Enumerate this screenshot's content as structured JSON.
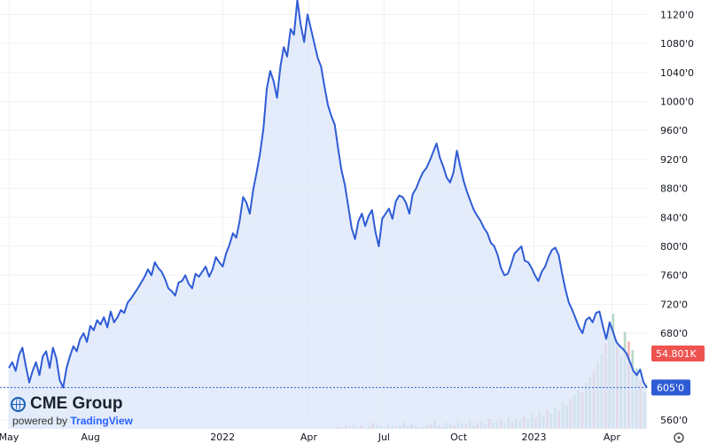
{
  "chart_data": {
    "type": "line",
    "title": "",
    "xlabel": "",
    "ylabel": "",
    "ylim": [
      548,
      1140
    ],
    "y_ticks": [
      "560'0",
      "605'0",
      "680'0",
      "720'0",
      "760'0",
      "800'0",
      "840'0",
      "880'0",
      "920'0",
      "960'0",
      "1000'0",
      "1040'0",
      "1080'0",
      "1120'0"
    ],
    "y_tick_values": [
      560,
      605,
      680,
      720,
      760,
      800,
      840,
      880,
      920,
      960,
      1000,
      1040,
      1080,
      1120
    ],
    "x_ticks": [
      "May",
      "Aug",
      "2022",
      "Apr",
      "Jul",
      "Oct",
      "2023",
      "Apr"
    ],
    "grid": true,
    "area_color": "#dbe6fa",
    "line_color": "#2f5cd6",
    "series": [
      {
        "values": [
          632,
          640,
          628,
          650,
          660,
          635,
          612,
          628,
          640,
          622,
          648,
          655,
          632,
          660,
          645,
          615,
          605,
          632,
          648,
          662,
          655,
          672,
          680,
          668,
          690,
          684,
          698,
          692,
          702,
          688,
          710,
          695,
          702,
          712,
          708,
          722,
          728,
          735,
          742,
          750,
          758,
          768,
          760,
          778,
          770,
          765,
          755,
          742,
          738,
          732,
          750,
          752,
          760,
          748,
          742,
          762,
          758,
          765,
          772,
          758,
          768,
          785,
          778,
          772,
          790,
          802,
          818,
          812,
          835,
          868,
          860,
          845,
          878,
          902,
          928,
          962,
          1018,
          1042,
          1028,
          1005,
          1048,
          1075,
          1062,
          1100,
          1092,
          1140,
          1105,
          1082,
          1120,
          1100,
          1080,
          1060,
          1048,
          1020,
          995,
          980,
          968,
          935,
          905,
          885,
          855,
          825,
          810,
          835,
          845,
          828,
          842,
          850,
          820,
          800,
          838,
          845,
          852,
          838,
          862,
          870,
          868,
          860,
          845,
          872,
          880,
          892,
          902,
          908,
          918,
          930,
          942,
          922,
          910,
          895,
          888,
          902,
          932,
          910,
          890,
          875,
          862,
          850,
          842,
          835,
          825,
          818,
          805,
          800,
          788,
          770,
          760,
          762,
          775,
          790,
          795,
          800,
          780,
          778,
          770,
          760,
          752,
          765,
          772,
          785,
          795,
          798,
          788,
          762,
          740,
          722,
          712,
          700,
          688,
          680,
          698,
          702,
          695,
          708,
          710,
          690,
          672,
          695,
          682,
          668,
          662,
          658,
          652,
          640,
          628,
          622,
          630,
          612,
          605
        ]
      }
    ],
    "price_tag": {
      "label": "605'0",
      "value": 605
    },
    "volume_tag": {
      "label": "54.801K",
      "value": 652
    },
    "volume": {
      "unit": "relative",
      "values": [
        2,
        1,
        3,
        2,
        4,
        2,
        3,
        1,
        2,
        5,
        3,
        2,
        1,
        4,
        3,
        2,
        3,
        5,
        2,
        4,
        3,
        1,
        2,
        3,
        4,
        6,
        3,
        2,
        5,
        4,
        3,
        6,
        5,
        4,
        7,
        3,
        5,
        6,
        4,
        8,
        5,
        6,
        7,
        5,
        9,
        6,
        8,
        7,
        10,
        8,
        12,
        9,
        14,
        11,
        16,
        13,
        18,
        15,
        22,
        20,
        25,
        28,
        32,
        30,
        38,
        42,
        48,
        55,
        62,
        70,
        85,
        95,
        70,
        60,
        80,
        72,
        65,
        50,
        40,
        30
      ]
    }
  },
  "logo": {
    "name": "CME Group",
    "powered_by": "powered by",
    "provider": "TradingView"
  }
}
